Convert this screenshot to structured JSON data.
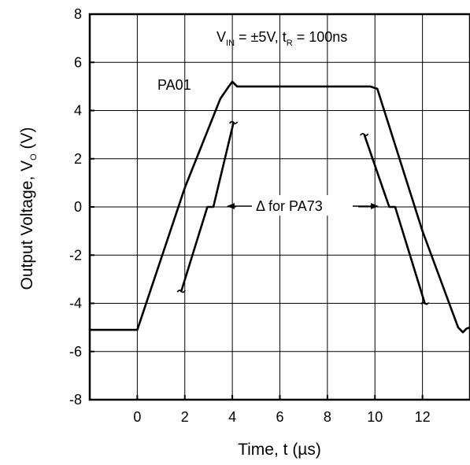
{
  "chart_data": {
    "type": "line",
    "title": "",
    "xlabel": "Time, t (µs)",
    "ylabel_main": "Output Voltage, V",
    "ylabel_sub": "O",
    "ylabel_unit": " (V)",
    "xlim": [
      -2,
      14
    ],
    "ylim": [
      -8,
      8
    ],
    "x_ticks": [
      0,
      2,
      4,
      6,
      8,
      10,
      12
    ],
    "x_tick_labels": [
      "0",
      "2",
      "4",
      "6",
      "8",
      "10",
      "12"
    ],
    "y_ticks": [
      8,
      6,
      4,
      2,
      0,
      -2,
      -4,
      -6,
      -8
    ],
    "y_tick_labels": [
      "8",
      "6",
      "4",
      "2",
      "0",
      "-2",
      "-4",
      "-6",
      "-8"
    ],
    "grid": true,
    "annotations": {
      "condition": {
        "v": "V",
        "v_sub": "IN",
        "mid": " = ±5V, t",
        "t_sub": "R",
        "end": " = 100ns"
      },
      "pa01_label": "PA01",
      "delta_label": "Δ for PA73"
    },
    "series": [
      {
        "name": "PA01",
        "x": [
          -2,
          0,
          2.0,
          3.5,
          3.85,
          4.0,
          4.2,
          9.8,
          10.1,
          12.0,
          13.5,
          13.7,
          13.85,
          14.0
        ],
        "y": [
          -5.1,
          -5.1,
          0.8,
          4.5,
          5.0,
          5.2,
          5.0,
          5.0,
          4.9,
          -1.0,
          -5.0,
          -5.2,
          -5.05,
          -5.0
        ]
      },
      {
        "name": "PA73 rising",
        "x": [
          1.85,
          2.95,
          3.2,
          4.05
        ],
        "y": [
          -3.5,
          0,
          0,
          3.5
        ]
      },
      {
        "name": "PA73 falling",
        "x": [
          9.55,
          10.6,
          10.85,
          12.1
        ],
        "y": [
          3.0,
          0,
          0,
          -4.0
        ]
      }
    ]
  }
}
